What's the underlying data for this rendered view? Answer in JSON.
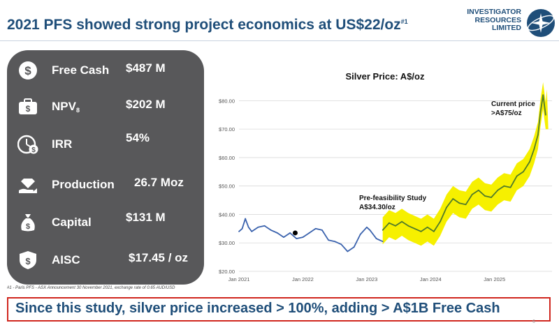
{
  "slide": {
    "title": "2021 PFS showed strong project economics at US$22/oz",
    "title_footnote_ref": "#1",
    "page_number": "6"
  },
  "logo": {
    "line1": "INVESTIGATOR",
    "line2": "RESOURCES",
    "line3": "LIMITED"
  },
  "metrics": [
    {
      "icon": "dollar-coin-icon",
      "label": "Free Cash",
      "value": "$487 M"
    },
    {
      "icon": "briefcase-money-icon",
      "label": "NPV",
      "label_sub": "8",
      "value": "$202 M"
    },
    {
      "icon": "clock-dollar-icon",
      "label": "IRR",
      "value": "54%"
    },
    {
      "icon": "hand-diamond-icon",
      "label": "Production",
      "value": "26.7 Moz"
    },
    {
      "icon": "money-bag-icon",
      "label": "Capital",
      "value": "$131 M"
    },
    {
      "icon": "shield-dollar-icon",
      "label": "AISC",
      "value": "$17.45 / oz"
    }
  ],
  "footnote": "#1 - Paris PFS - ASX Announcement 30 November 2021, exchange rate of 0.65 AUD/USD",
  "bottom_banner": "Since this study, silver price increased > 100%, adding > A$1B Free Cash",
  "colors": {
    "brand": "#1f4e79",
    "panel": "#58585a",
    "series_pre": "#3a62ad",
    "series_post": "#4f7a2a",
    "highlight": "#f6f000",
    "banner_border": "#d0261e"
  },
  "chart_data": {
    "type": "line",
    "title": "Silver Price: A$/oz",
    "xlabel": "",
    "ylabel": "",
    "ylim": [
      20,
      85
    ],
    "yticks": [
      20,
      30,
      40,
      50,
      60,
      70,
      80
    ],
    "ytick_labels": [
      "$20.00",
      "$30.00",
      "$40.00",
      "$50.00",
      "$60.00",
      "$70.00",
      "$80.00"
    ],
    "xlim": [
      2021.0,
      2025.9
    ],
    "xticks": [
      2021.0,
      2022.0,
      2023.0,
      2024.0,
      2025.0
    ],
    "xtick_labels": [
      "Jan 2021",
      "Jan 2022",
      "Jan 2023",
      "Jan 2024",
      "Jan 2025"
    ],
    "series": [
      {
        "name": "Silver price (before PFS)",
        "color": "#3a62ad",
        "x": [
          2021.0,
          2021.05,
          2021.1,
          2021.15,
          2021.2,
          2021.3,
          2021.4,
          2021.5,
          2021.6,
          2021.7,
          2021.8,
          2021.9,
          2022.0,
          2022.1,
          2022.2,
          2022.3,
          2022.4,
          2022.5,
          2022.6,
          2022.7,
          2022.8,
          2022.9,
          2023.0,
          2023.05,
          2023.1,
          2023.15,
          2023.2,
          2023.25
        ],
        "y": [
          34.0,
          35.0,
          38.5,
          35.5,
          34.0,
          35.5,
          36.0,
          34.5,
          33.5,
          32.0,
          33.5,
          31.5,
          32.0,
          33.5,
          35.0,
          34.5,
          31.0,
          30.5,
          29.5,
          27.0,
          28.5,
          33.0,
          35.5,
          34.5,
          33.0,
          31.5,
          31.0,
          30.5
        ]
      },
      {
        "name": "Silver price (since PFS)",
        "color": "#4f7a2a",
        "x": [
          2023.25,
          2023.35,
          2023.45,
          2023.55,
          2023.65,
          2023.75,
          2023.85,
          2023.95,
          2024.05,
          2024.15,
          2024.25,
          2024.35,
          2024.45,
          2024.55,
          2024.65,
          2024.75,
          2024.85,
          2024.95,
          2025.05,
          2025.15,
          2025.25,
          2025.35,
          2025.45,
          2025.55,
          2025.62,
          2025.68,
          2025.72,
          2025.76,
          2025.8
        ],
        "y": [
          34.5,
          37.0,
          36.0,
          37.5,
          36.0,
          35.0,
          34.0,
          35.5,
          34.0,
          37.5,
          42.5,
          45.5,
          44.0,
          43.5,
          47.0,
          48.5,
          46.5,
          46.0,
          48.5,
          50.0,
          49.5,
          53.5,
          55.0,
          58.5,
          63.0,
          68.0,
          76.0,
          82.0,
          75.0
        ]
      }
    ],
    "highlight_band": {
      "label": "highlighted period since PFS",
      "x_start": 2023.25,
      "x_end": 2025.82
    },
    "markers": [
      {
        "label": "PFS date marker",
        "x": 2021.88,
        "y": 33.5
      }
    ],
    "annotations": [
      {
        "line1": "Pre-feasibility Study",
        "line2": "A$34.30/oz"
      },
      {
        "line1": "Current price",
        "line2": ">A$75/oz"
      }
    ]
  }
}
